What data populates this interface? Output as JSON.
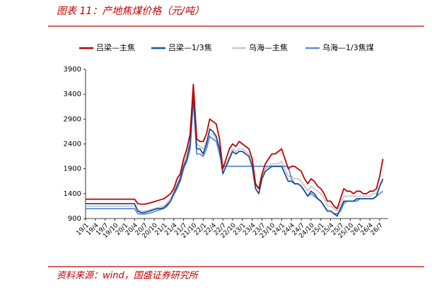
{
  "chart_data": {
    "type": "line",
    "title": "图表 11：产地焦煤价格（元/吨）",
    "source": "资料来源：wind，国盛证券研究所",
    "categories": [
      "19/1",
      null,
      null,
      "19/4",
      null,
      null,
      "19/7",
      null,
      null,
      "19/10",
      null,
      null,
      "20/1",
      null,
      null,
      "20/4",
      null,
      null,
      "20/7",
      null,
      null,
      "20/10",
      null,
      null,
      "21/1",
      null,
      null,
      "21/4",
      null,
      null,
      "21/7",
      null,
      null,
      "21/10",
      null,
      null,
      "22/1",
      null,
      null,
      "22/4",
      null,
      null,
      "22/7",
      null,
      null,
      "22/10",
      null,
      null,
      "23/1",
      null,
      null,
      "23/4",
      null,
      null,
      "23/7",
      null,
      null,
      "23/10",
      null,
      null,
      "24/1",
      null,
      null,
      "24/4",
      null,
      null,
      "24/7",
      null,
      null,
      "24/10",
      null,
      null,
      "25/1",
      null,
      null,
      "25/4",
      null,
      null,
      "25/7",
      null,
      null,
      "25/10",
      null,
      null,
      "26/1",
      null,
      null,
      "26/4",
      null,
      null,
      "26/7",
      null
    ],
    "ylim": [
      900,
      3900
    ],
    "yticks": [
      900,
      1400,
      1900,
      2400,
      2900,
      3400,
      3900
    ],
    "series": [
      {
        "name": "吕梁—主焦",
        "color": "#c00000",
        "values": [
          1290,
          1290,
          1290,
          1290,
          1290,
          1290,
          1290,
          1290,
          1290,
          1290,
          1290,
          1290,
          1290,
          1290,
          1290,
          1290,
          1200,
          1190,
          1190,
          1200,
          1220,
          1240,
          1260,
          1280,
          1300,
          1350,
          1400,
          1500,
          1700,
          1800,
          2100,
          2300,
          2600,
          3600,
          2500,
          2450,
          2450,
          2600,
          2900,
          2850,
          2800,
          2500,
          1900,
          2100,
          2300,
          2400,
          2350,
          2450,
          2400,
          2350,
          2300,
          2100,
          1600,
          1500,
          1800,
          2000,
          2100,
          2200,
          2200,
          2250,
          2300,
          2100,
          1900,
          1950,
          1950,
          1900,
          1850,
          1700,
          1600,
          1700,
          1650,
          1550,
          1500,
          1400,
          1250,
          1250,
          1150,
          1100,
          1300,
          1500,
          1450,
          1450,
          1400,
          1450,
          1450,
          1400,
          1400,
          1450,
          1450,
          1500,
          1750,
          2100
        ]
      },
      {
        "name": "吕梁—1/3焦",
        "color": "#1f4e9c",
        "values": [
          1200,
          1200,
          1200,
          1200,
          1200,
          1200,
          1200,
          1200,
          1200,
          1200,
          1200,
          1200,
          1200,
          1200,
          1200,
          1200,
          1050,
          1020,
          1020,
          1040,
          1060,
          1080,
          1100,
          1100,
          1120,
          1180,
          1250,
          1400,
          1550,
          1700,
          1950,
          2100,
          2400,
          3400,
          2300,
          2300,
          2200,
          2400,
          2700,
          2650,
          2550,
          2300,
          1800,
          1950,
          2100,
          2250,
          2200,
          2250,
          2250,
          2200,
          2150,
          1950,
          1500,
          1400,
          1700,
          1850,
          1900,
          1950,
          1950,
          1950,
          1950,
          1800,
          1650,
          1650,
          1600,
          1600,
          1550,
          1450,
          1350,
          1450,
          1400,
          1300,
          1250,
          1150,
          1050,
          1050,
          1000,
          950,
          1100,
          1250,
          1250,
          1250,
          1250,
          1300,
          1300,
          1300,
          1300,
          1300,
          1300,
          1350,
          1550,
          1700
        ]
      },
      {
        "name": "乌海—主焦",
        "color": "#c8c8c8",
        "values": [
          1150,
          1150,
          1150,
          1150,
          1150,
          1150,
          1150,
          1150,
          1150,
          1150,
          1150,
          1150,
          1150,
          1150,
          1150,
          1150,
          1060,
          1050,
          1050,
          1060,
          1080,
          1100,
          1120,
          1140,
          1160,
          1220,
          1300,
          1450,
          1600,
          1750,
          2000,
          2200,
          2500,
          3500,
          2400,
          2350,
          2300,
          2450,
          2600,
          2600,
          2500,
          2300,
          1900,
          2000,
          2150,
          2300,
          2250,
          2300,
          2300,
          2250,
          2200,
          2000,
          1550,
          1500,
          1750,
          1900,
          1950,
          2000,
          2000,
          2000,
          2050,
          1900,
          1750,
          1750,
          1700,
          1700,
          1650,
          1550,
          1450,
          1550,
          1500,
          1450,
          1400,
          1300,
          1150,
          1150,
          1100,
          1050,
          1200,
          1350,
          1350,
          1350,
          1350,
          1350,
          1350,
          1350,
          1350,
          1350,
          1400,
          1400,
          1550,
          1650
        ]
      },
      {
        "name": "乌海—1/3焦煤",
        "color": "#5b8fd6",
        "values": [
          1100,
          1100,
          1100,
          1100,
          1100,
          1100,
          1100,
          1100,
          1100,
          1100,
          1100,
          1100,
          1100,
          1100,
          1100,
          1100,
          1000,
          990,
          990,
          1000,
          1020,
          1040,
          1060,
          1080,
          1100,
          1150,
          1250,
          1380,
          1500,
          1650,
          1900,
          2050,
          2300,
          3300,
          2200,
          2200,
          2150,
          2300,
          2550,
          2500,
          2450,
          2200,
          1950,
          1950,
          1950,
          1950,
          1950,
          1950,
          1950,
          1950,
          1950,
          1950,
          1950,
          1950,
          1950,
          1950,
          1950,
          1950,
          1950,
          1950,
          1950,
          1950,
          1950,
          1700,
          1600,
          1600,
          1550,
          1450,
          1350,
          1400,
          1350,
          1300,
          1250,
          1150,
          1050,
          1050,
          1000,
          1000,
          1050,
          1200,
          1250,
          1250,
          1250,
          1250,
          1300,
          1300,
          1300,
          1300,
          1300,
          1350,
          1400,
          1450
        ]
      }
    ]
  }
}
